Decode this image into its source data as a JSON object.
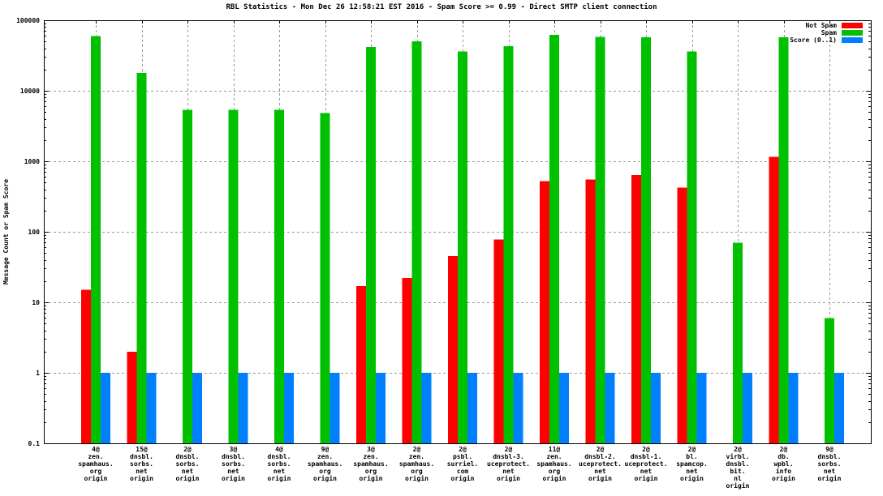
{
  "title": "RBL Statistics - Mon Dec 26 12:58:21 EST 2016 - Spam Score >= 0.99 - Direct SMTP client connection",
  "y_axis_title": "Message Count or Spam Score",
  "legend": [
    {
      "label": "Not Spam",
      "color": "#ff0000"
    },
    {
      "label": "Spam",
      "color": "#00c000"
    },
    {
      "label": "Score (0..1)",
      "color": "#0080ff"
    }
  ],
  "chart_data": {
    "type": "bar",
    "title": "RBL Statistics - Mon Dec 26 12:58:21 EST 2016 - Spam Score >= 0.99 - Direct SMTP client connection",
    "xlabel": "",
    "ylabel": "Message Count or Spam Score",
    "yscale": "log",
    "ylim": [
      0.1,
      100000
    ],
    "ytick_values": [
      0.1,
      1,
      10,
      100,
      1000,
      10000,
      100000
    ],
    "ytick_labels": [
      "0.1",
      "1",
      "10",
      "100",
      "1000",
      "10000",
      "100000"
    ],
    "grid": true,
    "legend_position": "top-right",
    "categories": [
      [
        "4@",
        "zen.",
        "spamhaus.",
        "org",
        "origin"
      ],
      [
        "15@",
        "dnsbl.",
        "sorbs.",
        "net",
        "origin"
      ],
      [
        "2@",
        "dnsbl.",
        "sorbs.",
        "net",
        "origin"
      ],
      [
        "3@",
        "dnsbl.",
        "sorbs.",
        "net",
        "origin"
      ],
      [
        "4@",
        "dnsbl.",
        "sorbs.",
        "net",
        "origin"
      ],
      [
        "9@",
        "zen.",
        "spamhaus.",
        "org",
        "origin"
      ],
      [
        "3@",
        "zen.",
        "spamhaus.",
        "org",
        "origin"
      ],
      [
        "2@",
        "zen.",
        "spamhaus.",
        "org",
        "origin"
      ],
      [
        "2@",
        "psbl.",
        "surriel.",
        "com",
        "origin"
      ],
      [
        "2@",
        "dnsbl-3.",
        "uceprotect.",
        "net",
        "origin"
      ],
      [
        "11@",
        "zen.",
        "spamhaus.",
        "org",
        "origin"
      ],
      [
        "2@",
        "dnsbl-2.",
        "uceprotect.",
        "net",
        "origin"
      ],
      [
        "2@",
        "dnsbl-1.",
        "uceprotect.",
        "net",
        "origin"
      ],
      [
        "2@",
        "bl.",
        "spamcop.",
        "net",
        "origin"
      ],
      [
        "2@",
        "virbl.",
        "dnsbl.",
        "bit.",
        "nl",
        "origin"
      ],
      [
        "2@",
        "db.",
        "wpbl.",
        "info",
        "origin"
      ],
      [
        "9@",
        "dnsbl.",
        "sorbs.",
        "net",
        "origin"
      ]
    ],
    "series": [
      {
        "name": "Not Spam",
        "color": "#ff0000",
        "values": [
          15,
          2,
          0,
          0,
          0,
          0,
          17,
          22,
          45,
          78,
          520,
          550,
          640,
          425,
          0,
          1150,
          0
        ]
      },
      {
        "name": "Spam",
        "color": "#00c000",
        "values": [
          60000,
          18000,
          5400,
          5400,
          5400,
          4800,
          42000,
          50000,
          36000,
          43000,
          62000,
          58000,
          57000,
          36000,
          70,
          57000,
          6
        ]
      },
      {
        "name": "Score (0..1)",
        "color": "#0080ff",
        "values": [
          1,
          1,
          1,
          1,
          1,
          1,
          1,
          1,
          1,
          1,
          1,
          1,
          1,
          1,
          1,
          1,
          1
        ]
      }
    ]
  }
}
